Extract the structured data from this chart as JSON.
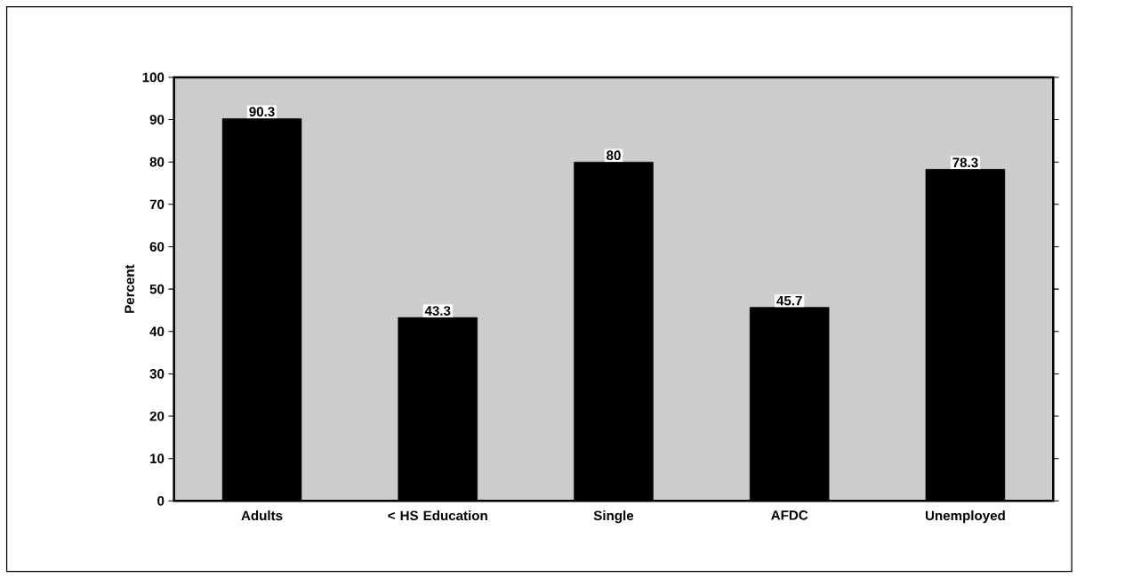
{
  "chart_data": {
    "type": "bar",
    "ylabel": "Percent",
    "categories": [
      "Adults",
      "< HS Education",
      "Single",
      "AFDC",
      "Unemployed"
    ],
    "values": [
      90.3,
      43.3,
      80,
      45.7,
      78.3
    ],
    "color": "#000000",
    "ylim": [
      0,
      100
    ],
    "yticks": [
      0,
      10,
      20,
      30,
      40,
      50,
      60,
      70,
      80,
      90,
      100
    ],
    "data_labels": true
  }
}
